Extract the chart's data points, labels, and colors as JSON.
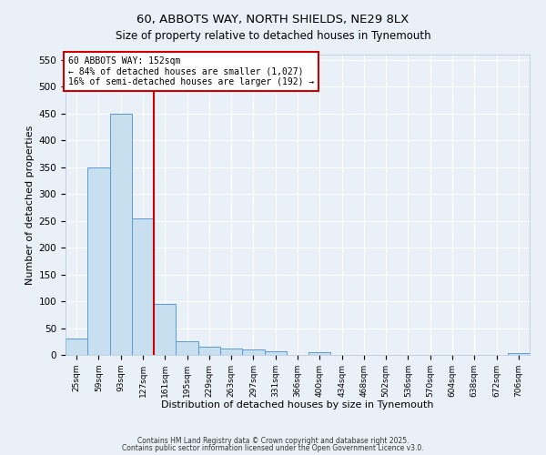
{
  "title": "60, ABBOTS WAY, NORTH SHIELDS, NE29 8LX",
  "subtitle": "Size of property relative to detached houses in Tynemouth",
  "xlabel": "Distribution of detached houses by size in Tynemouth",
  "ylabel": "Number of detached properties",
  "bin_labels": [
    "25sqm",
    "59sqm",
    "93sqm",
    "127sqm",
    "161sqm",
    "195sqm",
    "229sqm",
    "263sqm",
    "297sqm",
    "331sqm",
    "366sqm",
    "400sqm",
    "434sqm",
    "468sqm",
    "502sqm",
    "536sqm",
    "570sqm",
    "604sqm",
    "638sqm",
    "672sqm",
    "706sqm"
  ],
  "bar_heights": [
    30,
    350,
    450,
    255,
    95,
    25,
    15,
    12,
    10,
    6,
    0,
    5,
    0,
    0,
    0,
    0,
    0,
    0,
    0,
    0,
    3
  ],
  "bar_color": "#c8dff0",
  "bar_edge_color": "#5b9bd5",
  "redline_index": 4,
  "annotation_line1": "60 ABBOTS WAY: 152sqm",
  "annotation_line2": "← 84% of detached houses are smaller (1,027)",
  "annotation_line3": "16% of semi-detached houses are larger (192) →",
  "annotation_box_color": "#ffffff",
  "annotation_box_edge_color": "#cc0000",
  "bg_color": "#eaf0f8",
  "grid_color": "#ffffff",
  "ylim": [
    0,
    560
  ],
  "yticks": [
    0,
    50,
    100,
    150,
    200,
    250,
    300,
    350,
    400,
    450,
    500,
    550
  ],
  "footer1": "Contains HM Land Registry data © Crown copyright and database right 2025.",
  "footer2": "Contains public sector information licensed under the Open Government Licence v3.0."
}
